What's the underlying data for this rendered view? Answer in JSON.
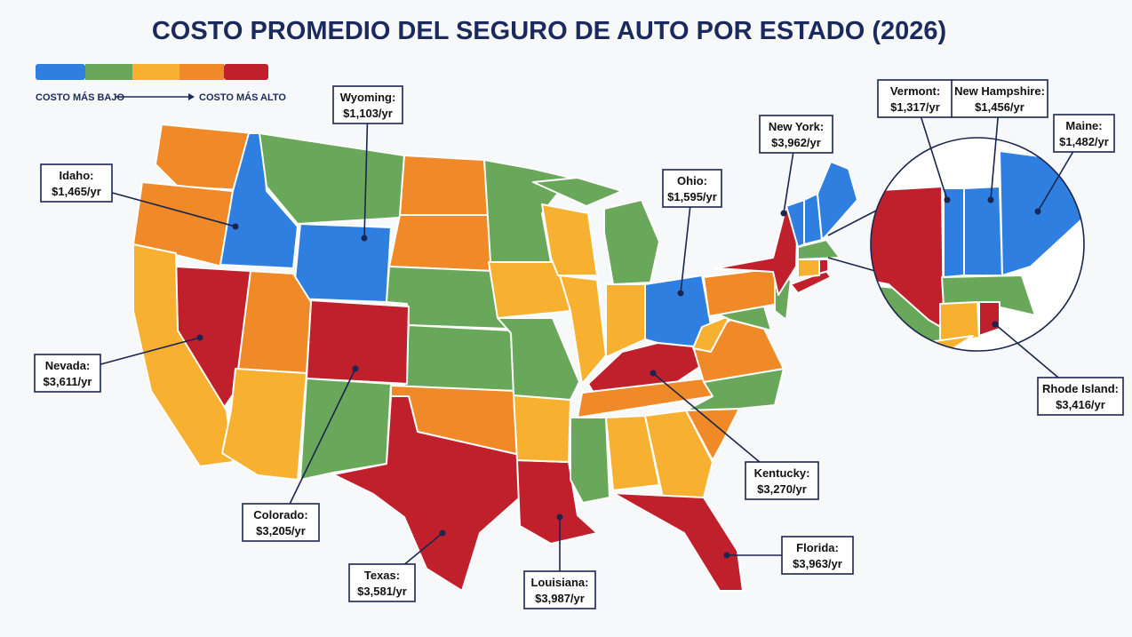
{
  "title": "COSTO PROMEDIO DEL SEGURO DE AUTO POR ESTADO (2026)",
  "legend": {
    "low": "COSTO MÁS BAJO",
    "high": "COSTO MÁS ALTO"
  },
  "callouts": [
    {
      "state": "Wyoming:",
      "cost": "$1,103/yr"
    },
    {
      "state": "Idaho:",
      "cost": "$1,465/yr"
    },
    {
      "state": "Nevada:",
      "cost": "$3,611/yr"
    },
    {
      "state": "Colorado:",
      "cost": "$3,205/yr"
    },
    {
      "state": "Texas:",
      "cost": "$3,581/yr"
    },
    {
      "state": "Louisiana:",
      "cost": "$3,987/yr"
    },
    {
      "state": "Kentucky:",
      "cost": "$3,270/yr"
    },
    {
      "state": "Florida:",
      "cost": "$3,963/yr"
    },
    {
      "state": "Ohio:",
      "cost": "$1,595/yr"
    },
    {
      "state": "New York:",
      "cost": "$3,962/yr"
    },
    {
      "state": "Vermont:",
      "cost": "$1,317/yr"
    },
    {
      "state": "New Hampshire:",
      "cost": "$1,456/yr"
    },
    {
      "state": "Maine:",
      "cost": "$1,482/yr"
    },
    {
      "state": "Rhode Island:",
      "cost": "$3,416/yr"
    }
  ]
}
